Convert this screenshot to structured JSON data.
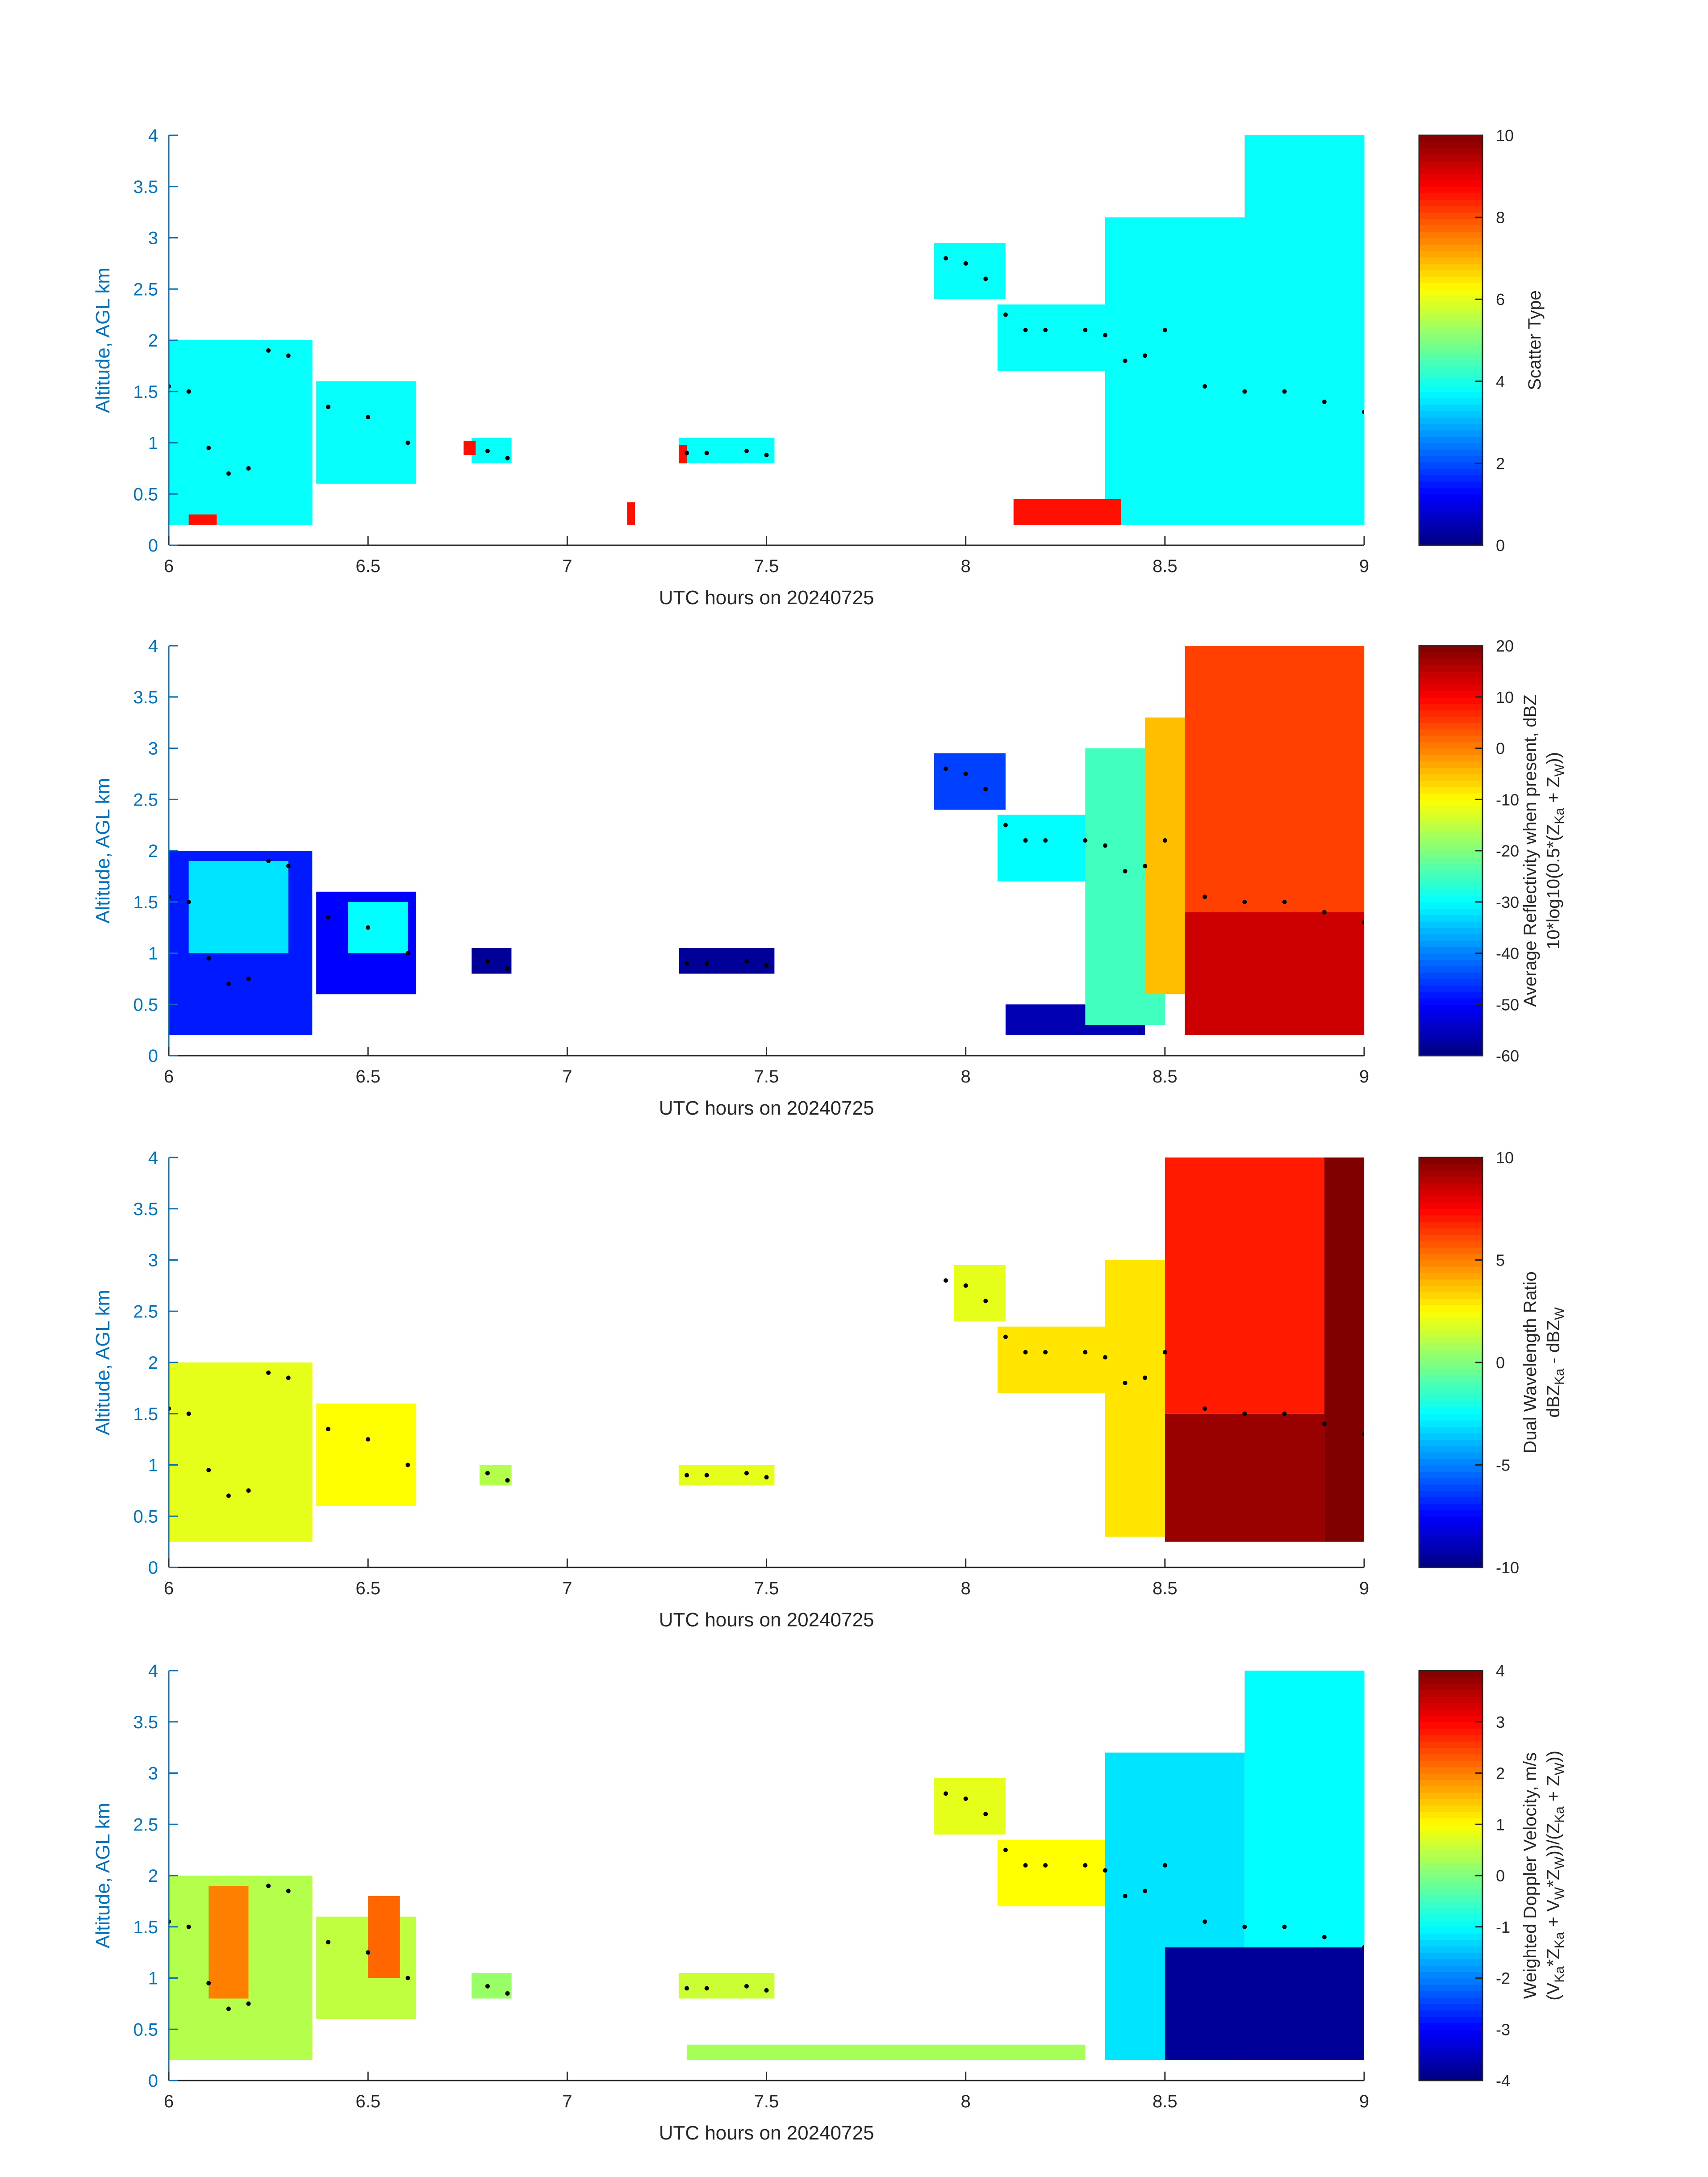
{
  "chart_data": [
    {
      "type": "heatmap",
      "xlabel": "UTC hours on 20240725",
      "ylabel": "Altitude, AGL km",
      "xlim": [
        6,
        9
      ],
      "ylim": [
        0,
        4
      ],
      "xticks": [
        "6",
        "6.5",
        "7",
        "7.5",
        "8",
        "8.5",
        "9"
      ],
      "yticks": [
        "0",
        "0.5",
        "1",
        "1.5",
        "2",
        "2.5",
        "3",
        "3.5",
        "4"
      ],
      "colorbar": {
        "label_lines": [
          "Scatter Type"
        ],
        "range": [
          0,
          10
        ],
        "ticks": [
          "0",
          "2",
          "4",
          "6",
          "8",
          "10"
        ]
      },
      "background": 3.8,
      "colorscale": "jet",
      "regions": [
        {
          "x": [
            6.0,
            6.36
          ],
          "y": [
            0.2,
            2.0
          ],
          "v": 3.8
        },
        {
          "x": [
            6.37,
            6.62
          ],
          "y": [
            0.6,
            1.6
          ],
          "v": 3.8
        },
        {
          "x": [
            6.76,
            6.86
          ],
          "y": [
            0.8,
            1.05
          ],
          "v": 3.8
        },
        {
          "x": [
            7.28,
            7.52
          ],
          "y": [
            0.8,
            1.05
          ],
          "v": 3.8
        },
        {
          "x": [
            7.92,
            8.1
          ],
          "y": [
            2.4,
            2.95
          ],
          "v": 3.8
        },
        {
          "x": [
            8.08,
            8.35
          ],
          "y": [
            1.7,
            2.35
          ],
          "v": 3.8
        },
        {
          "x": [
            8.35,
            8.7
          ],
          "y": [
            0.2,
            3.2
          ],
          "v": 3.8
        },
        {
          "x": [
            8.7,
            9.0
          ],
          "y": [
            0.2,
            4.0
          ],
          "v": 3.8
        },
        {
          "x": [
            8.12,
            8.39
          ],
          "y": [
            0.2,
            0.45
          ],
          "v": 8.6
        },
        {
          "x": [
            6.05,
            6.12
          ],
          "y": [
            0.2,
            0.3
          ],
          "v": 8.6
        },
        {
          "x": [
            7.15,
            7.17
          ],
          "y": [
            0.2,
            0.42
          ],
          "v": 8.6
        },
        {
          "x": [
            7.28,
            7.3
          ],
          "y": [
            0.8,
            0.98
          ],
          "v": 8.6
        },
        {
          "x": [
            6.74,
            6.77
          ],
          "y": [
            0.88,
            1.02
          ],
          "v": 8.6
        }
      ],
      "melting_layer": {
        "x": [
          6.0,
          6.05,
          6.1,
          6.15,
          6.2,
          6.25,
          6.3,
          6.4,
          6.5,
          6.6,
          6.8,
          6.85,
          7.3,
          7.35,
          7.45,
          7.5,
          7.95,
          8.0,
          8.05,
          8.1,
          8.15,
          8.2,
          8.3,
          8.35,
          8.4,
          8.45,
          8.5,
          8.6,
          8.7,
          8.8,
          8.9,
          9.0
        ],
        "y": [
          1.55,
          1.5,
          0.95,
          0.7,
          0.75,
          1.9,
          1.85,
          1.35,
          1.25,
          1.0,
          0.92,
          0.85,
          0.9,
          0.9,
          0.92,
          0.88,
          2.8,
          2.75,
          2.6,
          2.25,
          2.1,
          2.1,
          2.1,
          2.05,
          1.8,
          1.85,
          2.1,
          1.55,
          1.5,
          1.5,
          1.4,
          1.3
        ]
      }
    },
    {
      "type": "heatmap",
      "xlabel": "UTC hours on 20240725",
      "ylabel": "Altitude, AGL km",
      "xlim": [
        6,
        9
      ],
      "ylim": [
        0,
        4
      ],
      "xticks": [
        "6",
        "6.5",
        "7",
        "7.5",
        "8",
        "8.5",
        "9"
      ],
      "yticks": [
        "0",
        "0.5",
        "1",
        "1.5",
        "2",
        "2.5",
        "3",
        "3.5",
        "4"
      ],
      "colorbar": {
        "label_lines": [
          "Average Reflectivity when present, dBZ",
          "10*log10(0.5*(Z",
          "Ka",
          " + Z",
          "W",
          "))"
        ],
        "range": [
          -60,
          20
        ],
        "ticks": [
          "-60",
          "-50",
          "-40",
          "-30",
          "-20",
          "-10",
          "0",
          "10",
          "20"
        ]
      },
      "colorscale": "jet",
      "regions": [
        {
          "x": [
            6.0,
            6.36
          ],
          "y": [
            0.2,
            2.0
          ],
          "v": -48
        },
        {
          "x": [
            6.05,
            6.3
          ],
          "y": [
            1.0,
            1.9
          ],
          "v": -32
        },
        {
          "x": [
            6.37,
            6.62
          ],
          "y": [
            0.6,
            1.6
          ],
          "v": -50
        },
        {
          "x": [
            6.45,
            6.6
          ],
          "y": [
            1.0,
            1.5
          ],
          "v": -30
        },
        {
          "x": [
            6.76,
            6.86
          ],
          "y": [
            0.8,
            1.05
          ],
          "v": -58
        },
        {
          "x": [
            7.28,
            7.52
          ],
          "y": [
            0.8,
            1.05
          ],
          "v": -58
        },
        {
          "x": [
            7.92,
            8.1
          ],
          "y": [
            2.4,
            2.95
          ],
          "v": -45
        },
        {
          "x": [
            8.08,
            8.35
          ],
          "y": [
            1.7,
            2.35
          ],
          "v": -30
        },
        {
          "x": [
            8.1,
            8.45
          ],
          "y": [
            0.2,
            0.5
          ],
          "v": -56
        },
        {
          "x": [
            8.3,
            8.5
          ],
          "y": [
            0.3,
            3.0
          ],
          "v": -25
        },
        {
          "x": [
            8.45,
            8.6
          ],
          "y": [
            0.6,
            3.3
          ],
          "v": -5
        },
        {
          "x": [
            8.55,
            9.0
          ],
          "y": [
            1.4,
            4.0
          ],
          "v": 5
        },
        {
          "x": [
            8.55,
            9.0
          ],
          "y": [
            0.2,
            1.4
          ],
          "v": 14
        }
      ],
      "melting_layer": {
        "x": [
          6.0,
          6.05,
          6.1,
          6.15,
          6.2,
          6.25,
          6.3,
          6.4,
          6.5,
          6.6,
          6.8,
          6.85,
          7.3,
          7.35,
          7.45,
          7.5,
          7.95,
          8.0,
          8.05,
          8.1,
          8.15,
          8.2,
          8.3,
          8.35,
          8.4,
          8.45,
          8.5,
          8.6,
          8.7,
          8.8,
          8.9,
          9.0
        ],
        "y": [
          1.55,
          1.5,
          0.95,
          0.7,
          0.75,
          1.9,
          1.85,
          1.35,
          1.25,
          1.0,
          0.92,
          0.85,
          0.9,
          0.9,
          0.92,
          0.88,
          2.8,
          2.75,
          2.6,
          2.25,
          2.1,
          2.1,
          2.1,
          2.05,
          1.8,
          1.85,
          2.1,
          1.55,
          1.5,
          1.5,
          1.4,
          1.3
        ]
      }
    },
    {
      "type": "heatmap",
      "xlabel": "UTC hours on 20240725",
      "ylabel": "Altitude, AGL km",
      "xlim": [
        6,
        9
      ],
      "ylim": [
        0,
        4
      ],
      "xticks": [
        "6",
        "6.5",
        "7",
        "7.5",
        "8",
        "8.5",
        "9"
      ],
      "yticks": [
        "0",
        "0.5",
        "1",
        "1.5",
        "2",
        "2.5",
        "3",
        "3.5",
        "4"
      ],
      "colorbar": {
        "label_lines": [
          "Dual Wavelength Ratio",
          "dBZ",
          "Ka",
          " - dBZ",
          "W"
        ],
        "range": [
          -10,
          10
        ],
        "ticks": [
          "-10",
          "-5",
          "0",
          "5",
          "10"
        ]
      },
      "colorscale": "jet",
      "regions": [
        {
          "x": [
            6.0,
            6.36
          ],
          "y": [
            0.25,
            2.0
          ],
          "v": 2
        },
        {
          "x": [
            6.37,
            6.62
          ],
          "y": [
            0.6,
            1.6
          ],
          "v": 2.5
        },
        {
          "x": [
            6.78,
            6.86
          ],
          "y": [
            0.8,
            1.0
          ],
          "v": 1
        },
        {
          "x": [
            7.28,
            7.52
          ],
          "y": [
            0.8,
            1.0
          ],
          "v": 2
        },
        {
          "x": [
            7.97,
            8.1
          ],
          "y": [
            2.4,
            2.95
          ],
          "v": 2
        },
        {
          "x": [
            8.08,
            8.4
          ],
          "y": [
            1.7,
            2.35
          ],
          "v": 3
        },
        {
          "x": [
            8.35,
            8.5
          ],
          "y": [
            0.3,
            3.0
          ],
          "v": 3
        },
        {
          "x": [
            8.5,
            8.9
          ],
          "y": [
            1.5,
            4.0
          ],
          "v": 7
        },
        {
          "x": [
            8.5,
            8.9
          ],
          "y": [
            0.25,
            1.5
          ],
          "v": 9.5
        },
        {
          "x": [
            8.9,
            9.0
          ],
          "y": [
            0.25,
            4.0
          ],
          "v": 10
        }
      ],
      "melting_layer": {
        "x": [
          6.0,
          6.05,
          6.1,
          6.15,
          6.2,
          6.25,
          6.3,
          6.4,
          6.5,
          6.6,
          6.8,
          6.85,
          7.3,
          7.35,
          7.45,
          7.5,
          7.95,
          8.0,
          8.05,
          8.1,
          8.15,
          8.2,
          8.3,
          8.35,
          8.4,
          8.45,
          8.5,
          8.6,
          8.7,
          8.8,
          8.9,
          9.0
        ],
        "y": [
          1.55,
          1.5,
          0.95,
          0.7,
          0.75,
          1.9,
          1.85,
          1.35,
          1.25,
          1.0,
          0.92,
          0.85,
          0.9,
          0.9,
          0.92,
          0.88,
          2.8,
          2.75,
          2.6,
          2.25,
          2.1,
          2.1,
          2.1,
          2.05,
          1.8,
          1.85,
          2.1,
          1.55,
          1.5,
          1.5,
          1.4,
          1.3
        ]
      }
    },
    {
      "type": "heatmap",
      "xlabel": "UTC hours on 20240725",
      "ylabel": "Altitude, AGL km",
      "xlim": [
        6,
        9
      ],
      "ylim": [
        0,
        4
      ],
      "xticks": [
        "6",
        "6.5",
        "7",
        "7.5",
        "8",
        "8.5",
        "9"
      ],
      "yticks": [
        "0",
        "0.5",
        "1",
        "1.5",
        "2",
        "2.5",
        "3",
        "3.5",
        "4"
      ],
      "colorbar": {
        "label_lines": [
          "Weighted Doppler Velocity, m/s",
          "(V",
          "Ka",
          "*Z",
          "Ka",
          " + V",
          "W",
          "*Z",
          "W",
          "))/(Z",
          "Ka",
          " + Z",
          "W",
          "))"
        ],
        "range": [
          -4,
          4
        ],
        "ticks": [
          "-4",
          "-3",
          "-2",
          "-1",
          "0",
          "1",
          "2",
          "3",
          "4"
        ]
      },
      "colorscale": "jet",
      "regions": [
        {
          "x": [
            6.0,
            6.36
          ],
          "y": [
            0.2,
            2.0
          ],
          "v": 0.4
        },
        {
          "x": [
            6.1,
            6.2
          ],
          "y": [
            0.8,
            1.9
          ],
          "v": 2.0
        },
        {
          "x": [
            6.37,
            6.62
          ],
          "y": [
            0.6,
            1.6
          ],
          "v": 0.5
        },
        {
          "x": [
            6.5,
            6.58
          ],
          "y": [
            1.0,
            1.8
          ],
          "v": 2.2
        },
        {
          "x": [
            6.76,
            6.86
          ],
          "y": [
            0.8,
            1.05
          ],
          "v": 0.2
        },
        {
          "x": [
            7.28,
            7.52
          ],
          "y": [
            0.8,
            1.05
          ],
          "v": 0.6
        },
        {
          "x": [
            7.3,
            8.3
          ],
          "y": [
            0.2,
            0.35
          ],
          "v": 0.3
        },
        {
          "x": [
            7.92,
            8.1
          ],
          "y": [
            2.4,
            2.95
          ],
          "v": 0.8
        },
        {
          "x": [
            8.08,
            8.35
          ],
          "y": [
            1.7,
            2.35
          ],
          "v": 1.0
        },
        {
          "x": [
            8.35,
            8.7
          ],
          "y": [
            0.2,
            3.2
          ],
          "v": -1.2
        },
        {
          "x": [
            8.7,
            9.0
          ],
          "y": [
            1.3,
            4.0
          ],
          "v": -1.0
        },
        {
          "x": [
            8.5,
            9.0
          ],
          "y": [
            0.2,
            1.3
          ],
          "v": -3.8
        }
      ],
      "melting_layer": {
        "x": [
          6.0,
          6.05,
          6.1,
          6.15,
          6.2,
          6.25,
          6.3,
          6.4,
          6.5,
          6.6,
          6.8,
          6.85,
          7.3,
          7.35,
          7.45,
          7.5,
          7.95,
          8.0,
          8.05,
          8.1,
          8.15,
          8.2,
          8.3,
          8.35,
          8.4,
          8.45,
          8.5,
          8.6,
          8.7,
          8.8,
          8.9,
          9.0
        ],
        "y": [
          1.55,
          1.5,
          0.95,
          0.7,
          0.75,
          1.9,
          1.85,
          1.35,
          1.25,
          1.0,
          0.92,
          0.85,
          0.9,
          0.9,
          0.92,
          0.88,
          2.8,
          2.75,
          2.6,
          2.25,
          2.1,
          2.1,
          2.1,
          2.05,
          1.8,
          1.85,
          2.1,
          1.55,
          1.5,
          1.5,
          1.4,
          1.3
        ]
      }
    }
  ]
}
